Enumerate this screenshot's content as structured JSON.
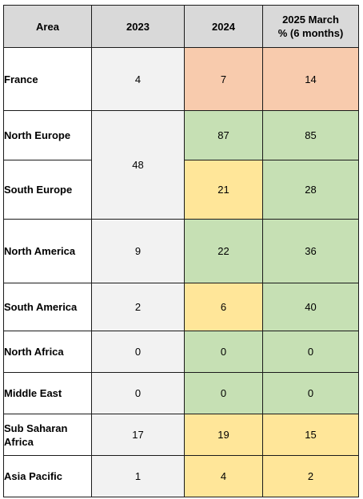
{
  "colors": {
    "header": "#d9d9d9",
    "col2023": "#f2f2f2",
    "green": "#c6e0b4",
    "yellow": "#ffe699",
    "orange": "#f8cbad"
  },
  "header": {
    "area": "Area",
    "y2023": "2023",
    "y2024": "2024",
    "y2025_line1": "2025 March",
    "y2025_line2": "% (6 months)"
  },
  "rows": [
    {
      "area": "France",
      "y2023": "4",
      "y2024": "7",
      "y2025": "14",
      "c2024": "orange",
      "c2025": "orange"
    },
    {
      "area": "North Europe",
      "y2024": "87",
      "y2025": "85",
      "c2024": "green",
      "c2025": "green"
    },
    {
      "area": "South Europe",
      "y2024": "21",
      "y2025": "28",
      "c2024": "yellow",
      "c2025": "green"
    },
    {
      "area": "North America",
      "y2023": "9",
      "y2024": "22",
      "y2025": "36",
      "c2024": "green",
      "c2025": "green"
    },
    {
      "area": "South America",
      "y2023": "2",
      "y2024": "6",
      "y2025": "40",
      "c2024": "yellow",
      "c2025": "green"
    },
    {
      "area": "North Africa",
      "y2023": "0",
      "y2024": "0",
      "y2025": "0",
      "c2024": "green",
      "c2025": "green"
    },
    {
      "area": "Middle East",
      "y2023": "0",
      "y2024": "0",
      "y2025": "0",
      "c2024": "green",
      "c2025": "green"
    },
    {
      "area": "Sub Saharan Africa",
      "y2023": "17",
      "y2024": "19",
      "y2025": "15",
      "c2024": "yellow",
      "c2025": "yellow"
    },
    {
      "area": "Asia Pacific",
      "y2023": "1",
      "y2024": "4",
      "y2025": "2",
      "c2024": "yellow",
      "c2025": "yellow"
    }
  ],
  "merged_europe_2023": "48"
}
